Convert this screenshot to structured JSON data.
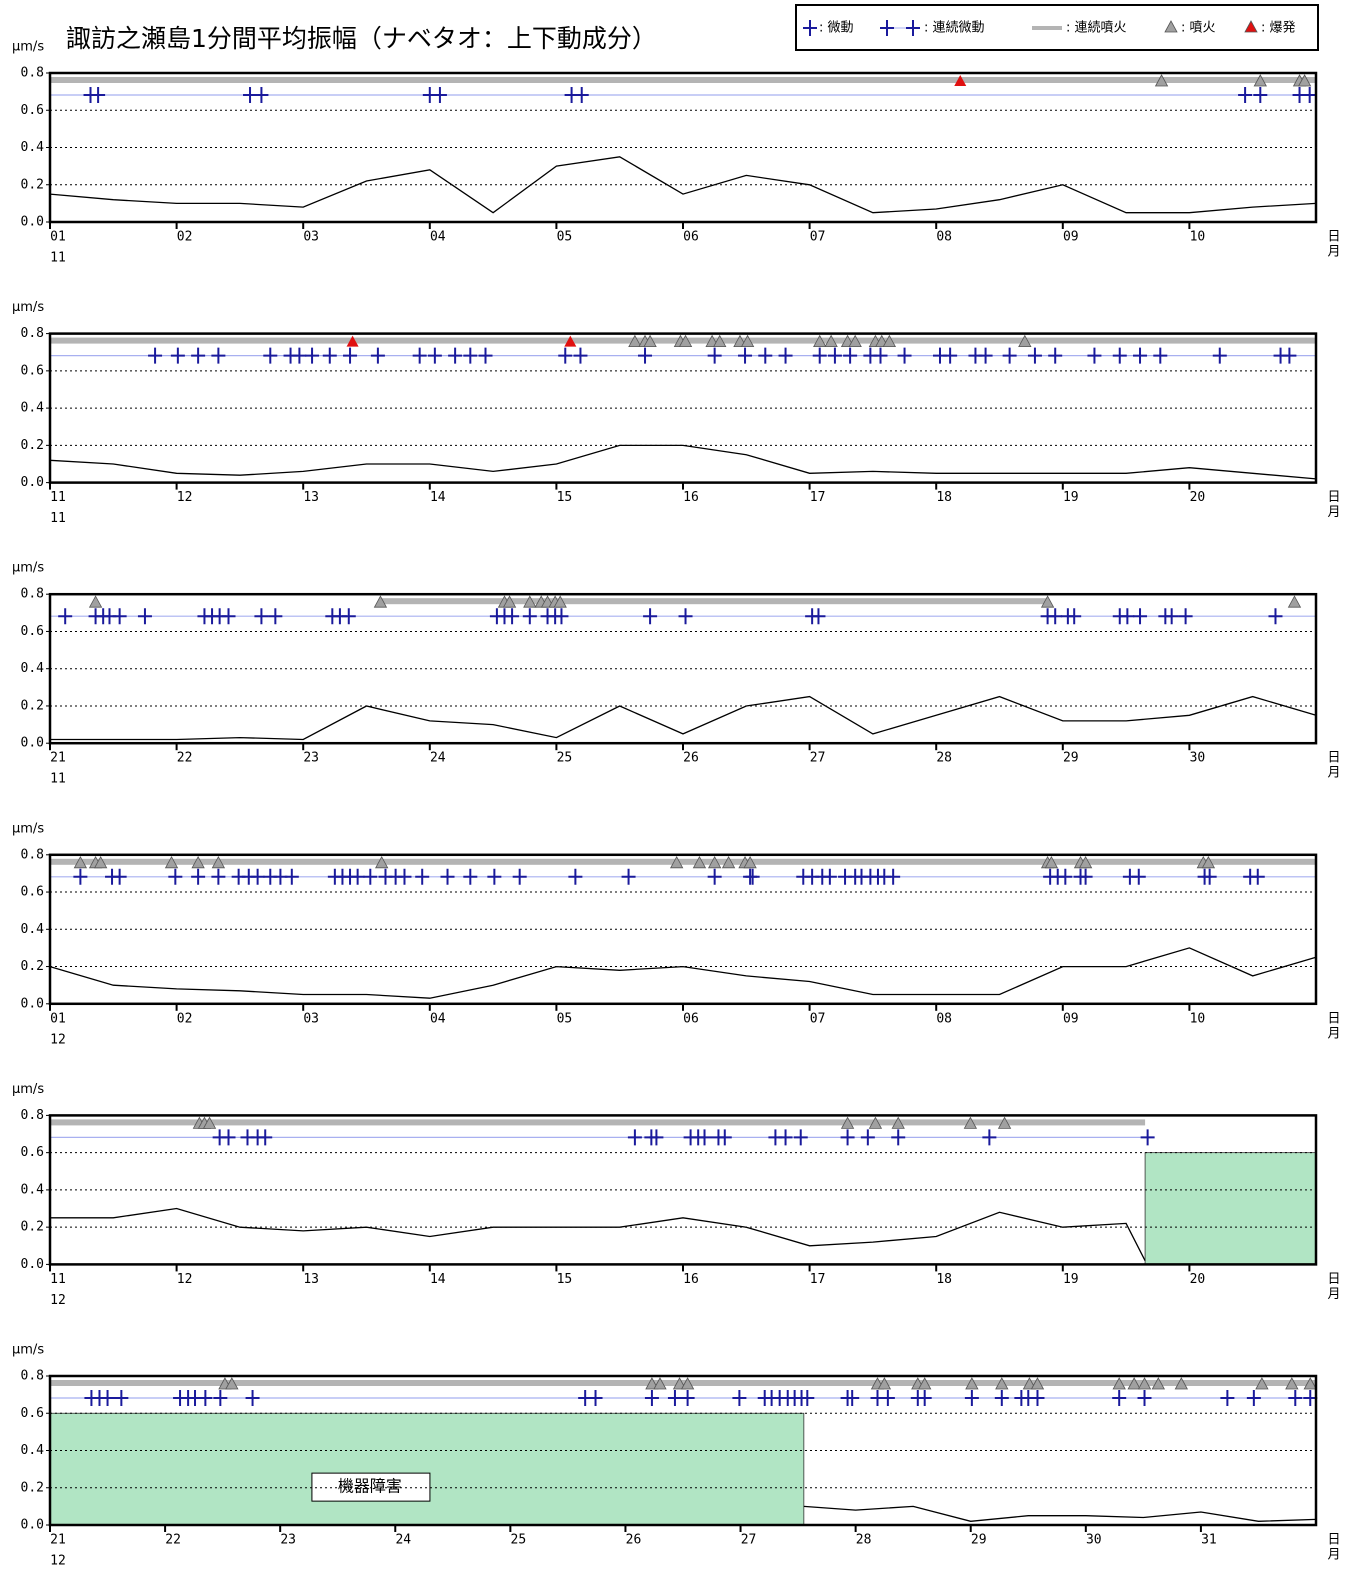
{
  "chart_data": [
    {
      "type": "line",
      "title": "諏訪之瀬島1分間平均振幅（ナベタオ：上下動成分）",
      "legend": [
        {
          "name": ": 微動",
          "color": "#1a1a9c"
        },
        {
          "name": ": 連続微動",
          "color": "#1a1a9c"
        },
        {
          "name": ": 連続噴火",
          "color": "#b4b4b4"
        },
        {
          "name": ": 噴火",
          "color": "#a0a0a0"
        },
        {
          "name": ": 爆発",
          "color": "#e01010"
        }
      ],
      "ylabel": "μm/s",
      "month": "11",
      "xlabel_day": "日",
      "xlabel_month": "月",
      "color": "#000000",
      "grid": true,
      "xlim": [
        1,
        11
      ],
      "ylim": [
        0,
        0.8
      ],
      "xticks": [
        {
          "value": 1,
          "label": "01"
        },
        {
          "value": 2,
          "label": "02"
        },
        {
          "value": 3,
          "label": "03"
        },
        {
          "value": 4,
          "label": "04"
        },
        {
          "value": 5,
          "label": "05"
        },
        {
          "value": 6,
          "label": "06"
        },
        {
          "value": 7,
          "label": "07"
        },
        {
          "value": 8,
          "label": "08"
        },
        {
          "value": 9,
          "label": "09"
        },
        10
      ],
      "yticks": [
        {
          "value": 0,
          "label": "0.0"
        },
        0.2,
        0.4,
        0.6,
        0.8
      ],
      "x": [
        1,
        1.5,
        2,
        2.5,
        3,
        3.5,
        4,
        4.5,
        5,
        5.5,
        6,
        6.5,
        7,
        7.5,
        8,
        8.5,
        9,
        9.5,
        10,
        10.5,
        11
      ],
      "values": [
        0.15,
        0.12,
        0.1,
        0.1,
        0.08,
        0.22,
        0.28,
        0.05,
        0.3,
        0.35,
        0.15,
        0.25,
        0.2,
        0.05,
        0.07,
        0.12,
        0.2,
        0.05,
        0.05,
        0.08,
        0.1
      ],
      "tremor": [
        1.32,
        1.38,
        2.58,
        2.67,
        4.0,
        4.08,
        5.12,
        5.2,
        10.44,
        10.56,
        10.87,
        10.95
      ],
      "eruptions": [
        9.78,
        10.56,
        10.87,
        10.91
      ],
      "explosions": [
        8.19
      ],
      "continuous_eruption": [
        [
          1,
          11
        ]
      ],
      "continuous_tremor": [
        [
          1,
          11
        ]
      ]
    },
    {
      "type": "line",
      "ylabel": "μm/s",
      "month": "11",
      "xlabel_day": "日",
      "xlabel_month": "月",
      "color": "#000000",
      "grid": true,
      "xlim": [
        11,
        21
      ],
      "ylim": [
        0,
        0.8
      ],
      "xticks": [
        11,
        12,
        13,
        14,
        15,
        16,
        17,
        18,
        19,
        20
      ],
      "yticks": [
        {
          "value": 0,
          "label": "0.0"
        },
        0.2,
        0.4,
        0.6,
        0.8
      ],
      "x": [
        11,
        11.5,
        12,
        12.5,
        13,
        13.5,
        14,
        14.5,
        15,
        15.5,
        16,
        16.5,
        17,
        17.5,
        18,
        18.5,
        19,
        19.5,
        20,
        20.5,
        21
      ],
      "values": [
        0.12,
        0.1,
        0.05,
        0.04,
        0.06,
        0.1,
        0.1,
        0.06,
        0.1,
        0.2,
        0.2,
        0.15,
        0.05,
        0.06,
        0.05,
        0.05,
        0.05,
        0.05,
        0.08,
        0.05,
        0.02
      ],
      "tremor": [
        11.83,
        12.01,
        12.17,
        12.33,
        12.74,
        12.9,
        12.97,
        13.07,
        13.21,
        13.37,
        13.59,
        13.92,
        14.04,
        14.2,
        14.32,
        14.44,
        15.07,
        15.19,
        15.7,
        16.25,
        16.49,
        16.65,
        16.81,
        17.08,
        17.2,
        17.32,
        17.48,
        17.56,
        17.75,
        18.03,
        18.11,
        18.31,
        18.39,
        18.58,
        18.78,
        18.94,
        19.25,
        19.45,
        19.61,
        19.77,
        20.24,
        20.72,
        20.79
      ],
      "eruptions": [
        15.62,
        15.7,
        15.74,
        15.98,
        16.02,
        16.23,
        16.29,
        16.45,
        16.51,
        17.08,
        17.17,
        17.3,
        17.36,
        17.52,
        17.57,
        17.63,
        18.7
      ],
      "explosions": [
        13.39,
        15.11
      ],
      "continuous_eruption": [
        [
          11,
          21
        ]
      ],
      "continuous_tremor": [
        [
          11,
          21
        ]
      ]
    },
    {
      "type": "line",
      "ylabel": "μm/s",
      "month": "11",
      "xlabel_day": "日",
      "xlabel_month": "月",
      "color": "#000000",
      "grid": true,
      "xlim": [
        21,
        31
      ],
      "ylim": [
        0,
        0.8
      ],
      "xticks": [
        21,
        22,
        23,
        24,
        25,
        26,
        27,
        28,
        29,
        30
      ],
      "yticks": [
        {
          "value": 0,
          "label": "0.0"
        },
        0.2,
        0.4,
        0.6,
        0.8
      ],
      "x": [
        21,
        21.5,
        22,
        22.5,
        23,
        23.5,
        24,
        24.5,
        25,
        25.5,
        26,
        26.5,
        27,
        27.5,
        28,
        28.5,
        29,
        29.5,
        30,
        30.5,
        31
      ],
      "values": [
        0.02,
        0.02,
        0.02,
        0.03,
        0.02,
        0.2,
        0.12,
        0.1,
        0.03,
        0.2,
        0.05,
        0.2,
        0.25,
        0.05,
        0.15,
        0.25,
        0.12,
        0.12,
        0.15,
        0.25,
        0.15
      ],
      "tremor": [
        21.12,
        21.36,
        21.42,
        21.47,
        21.55,
        21.75,
        22.22,
        22.28,
        22.34,
        22.41,
        22.67,
        22.78,
        23.23,
        23.29,
        23.36,
        24.53,
        24.59,
        24.65,
        24.79,
        24.93,
        24.99,
        25.04,
        25.74,
        26.02,
        27.02,
        27.07,
        28.88,
        28.94,
        29.04,
        29.09,
        29.45,
        29.51,
        29.61,
        29.81,
        29.86,
        29.97,
        30.68
      ],
      "eruptions": [
        21.36,
        23.61,
        24.59,
        24.63,
        24.79,
        24.88,
        24.93,
        24.99,
        25.03,
        28.88,
        30.83
      ],
      "explosions": [],
      "continuous_eruption": [
        [
          23.61,
          28.88
        ]
      ],
      "continuous_tremor": [
        [
          21,
          31
        ]
      ]
    },
    {
      "type": "line",
      "ylabel": "μm/s",
      "month": "12",
      "xlabel_day": "日",
      "xlabel_month": "月",
      "color": "#000000",
      "grid": true,
      "xlim": [
        1,
        11
      ],
      "ylim": [
        0,
        0.8
      ],
      "xticks": [
        {
          "value": 1,
          "label": "01"
        },
        {
          "value": 2,
          "label": "02"
        },
        {
          "value": 3,
          "label": "03"
        },
        {
          "value": 4,
          "label": "04"
        },
        {
          "value": 5,
          "label": "05"
        },
        {
          "value": 6,
          "label": "06"
        },
        {
          "value": 7,
          "label": "07"
        },
        {
          "value": 8,
          "label": "08"
        },
        {
          "value": 9,
          "label": "09"
        },
        10
      ],
      "yticks": [
        {
          "value": 0,
          "label": "0.0"
        },
        0.2,
        0.4,
        0.6,
        0.8
      ],
      "x": [
        1,
        1.5,
        2,
        2.5,
        3,
        3.5,
        4,
        4.5,
        5,
        5.5,
        6,
        6.5,
        7,
        7.5,
        8,
        8.5,
        9,
        9.5,
        10,
        10.5,
        11
      ],
      "values": [
        0.2,
        0.1,
        0.08,
        0.07,
        0.05,
        0.05,
        0.03,
        0.1,
        0.2,
        0.18,
        0.2,
        0.15,
        0.12,
        0.05,
        0.05,
        0.05,
        0.2,
        0.2,
        0.3,
        0.15,
        0.25
      ],
      "tremor": [
        1.24,
        1.49,
        1.55,
        1.99,
        2.17,
        2.33,
        2.49,
        2.57,
        2.64,
        2.74,
        2.82,
        2.91,
        3.25,
        3.31,
        3.37,
        3.43,
        3.53,
        3.65,
        3.73,
        3.8,
        3.94,
        4.14,
        4.32,
        4.51,
        4.71,
        5.15,
        5.57,
        6.25,
        6.53,
        6.55,
        6.95,
        7.02,
        7.1,
        7.16,
        7.28,
        7.36,
        7.41,
        7.48,
        7.54,
        7.59,
        7.66,
        8.9,
        8.96,
        9.02,
        9.14,
        9.18,
        9.53,
        9.6,
        10.12,
        10.16,
        10.48,
        10.54
      ],
      "eruptions": [
        1.24,
        1.36,
        1.4,
        1.96,
        2.17,
        2.33,
        3.62,
        5.95,
        6.13,
        6.25,
        6.36,
        6.49,
        6.53,
        8.88,
        8.91,
        9.14,
        9.18,
        10.11,
        10.15
      ],
      "explosions": [],
      "continuous_eruption": [
        [
          1,
          11
        ]
      ],
      "continuous_tremor": [
        [
          1,
          11
        ]
      ]
    },
    {
      "type": "line",
      "ylabel": "μm/s",
      "month": "12",
      "xlabel_day": "日",
      "xlabel_month": "月",
      "color": "#000000",
      "grid": true,
      "xlim": [
        11,
        21
      ],
      "ylim": [
        0,
        0.8
      ],
      "xticks": [
        11,
        12,
        13,
        14,
        15,
        16,
        17,
        18,
        19,
        20
      ],
      "yticks": [
        {
          "value": 0,
          "label": "0.0"
        },
        0.2,
        0.4,
        0.6,
        0.8
      ],
      "x": [
        11,
        11.5,
        12,
        12.5,
        13,
        13.5,
        14,
        14.5,
        15,
        15.5,
        16,
        16.5,
        17,
        17.5,
        18,
        18.5,
        19,
        19.5,
        19.65
      ],
      "values": [
        0.25,
        0.25,
        0.3,
        0.2,
        0.18,
        0.2,
        0.15,
        0.2,
        0.2,
        0.2,
        0.25,
        0.2,
        0.1,
        0.12,
        0.15,
        0.28,
        0.2,
        0.22,
        0.02
      ],
      "tremor": [
        12.34,
        12.41,
        12.56,
        12.64,
        12.7,
        15.62,
        15.75,
        15.79,
        16.06,
        16.12,
        16.17,
        16.28,
        16.33,
        16.73,
        16.81,
        16.93,
        17.3,
        17.46,
        17.7,
        18.42,
        19.67
      ],
      "eruptions": [
        12.18,
        12.22,
        12.26,
        17.3,
        17.52,
        17.7,
        18.27,
        18.54
      ],
      "explosions": [],
      "continuous_eruption": [
        [
          11,
          19.65
        ]
      ],
      "continuous_tremor": [
        [
          11,
          19.65
        ]
      ],
      "outage": {
        "x": [
          19.65,
          21
        ],
        "top": 0.6
      }
    },
    {
      "type": "line",
      "ylabel": "μm/s",
      "month": "12",
      "xlabel_day": "日",
      "xlabel_month": "月",
      "color": "#000000",
      "grid": true,
      "xlim": [
        21,
        32
      ],
      "ylim": [
        0,
        0.8
      ],
      "xticks": [
        21,
        22,
        23,
        24,
        25,
        26,
        27,
        28,
        29,
        30,
        31
      ],
      "yticks": [
        {
          "value": 0,
          "label": "0.0"
        },
        0.2,
        0.4,
        0.6,
        0.8
      ],
      "x": [
        27.55,
        28,
        28.5,
        29,
        29.5,
        30,
        30.5,
        31,
        31.5,
        32
      ],
      "values": [
        0.1,
        0.08,
        0.1,
        0.02,
        0.05,
        0.05,
        0.04,
        0.07,
        0.02,
        0.03
      ],
      "tremor": [
        21.36,
        21.43,
        21.5,
        21.62,
        22.13,
        22.2,
        22.26,
        22.35,
        22.48,
        22.76,
        25.65,
        25.74,
        26.23,
        26.43,
        26.54,
        26.99,
        27.21,
        27.27,
        27.34,
        27.41,
        27.47,
        27.53,
        27.58,
        27.93,
        27.97,
        28.19,
        28.28,
        28.54,
        28.6,
        29.01,
        29.27,
        29.44,
        29.5,
        29.58,
        30.29,
        30.51,
        31.23,
        31.46,
        31.82,
        31.95
      ],
      "eruptions": [
        22.52,
        22.58,
        26.23,
        26.3,
        26.47,
        26.54,
        28.19,
        28.25,
        28.54,
        28.6,
        29.01,
        29.27,
        29.51,
        29.58,
        30.29,
        30.42,
        30.51,
        30.63,
        30.83,
        31.53,
        31.79,
        31.95
      ],
      "explosions": [],
      "continuous_eruption": [
        [
          21,
          32
        ]
      ],
      "continuous_tremor": [
        [
          21,
          32
        ]
      ],
      "outage": {
        "x": [
          21,
          27.55
        ],
        "top": 0.6,
        "label": "機器障害"
      }
    }
  ]
}
